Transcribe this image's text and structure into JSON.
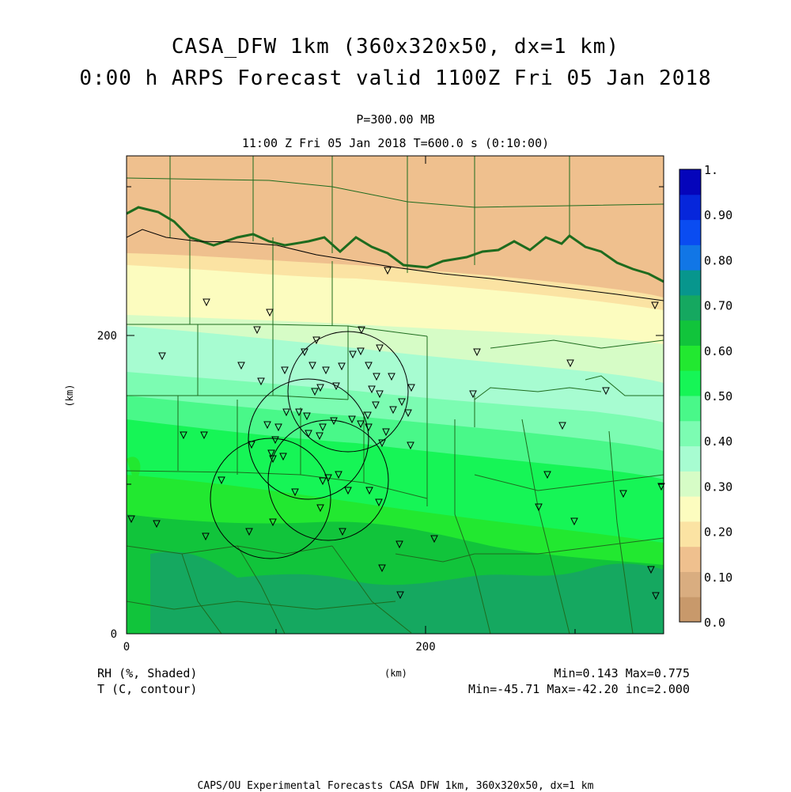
{
  "header": {
    "title_line1": "CASA_DFW 1km (360x320x50, dx=1 km)",
    "title_line2": "0:00 h ARPS Forecast valid 1100Z Fri 05 Jan 2018",
    "level": "P=300.00 MB",
    "time": "11:00 Z Fri 05 Jan 2018   T=600.0 s (0:10:00)"
  },
  "axes": {
    "x_ticks": [
      "0",
      "200"
    ],
    "y_ticks": [
      "0",
      "200"
    ],
    "x_unit": "(km)",
    "y_unit": "(km)"
  },
  "colorbar": {
    "labels": [
      "0.0",
      "0.10",
      "0.20",
      "0.30",
      "0.40",
      "0.50",
      "0.60",
      "0.70",
      "0.80",
      "0.90",
      "1."
    ],
    "colors": [
      "#c8996b",
      "#d9ad80",
      "#efc08e",
      "#fbe3a3",
      "#fcfcbf",
      "#d6fcc6",
      "#a7fcd1",
      "#7cfcb2",
      "#49f889",
      "#16f556",
      "#22e830",
      "#11c43b",
      "#15a860",
      "#07968d",
      "#1176e6",
      "#0a4cf1",
      "#0626db",
      "#0505bb"
    ]
  },
  "legend": {
    "shaded": "RH (%, Shaded)",
    "contour": "T (C, contour)",
    "shaded_minmax": "Min=0.143 Max=0.775",
    "contour_minmax": "Min=-45.71 Max=-42.20 inc=2.000"
  },
  "footer": "CAPS/OU Experimental Forecasts  CASA DFW 1km, 360x320x50, dx=1 km"
}
